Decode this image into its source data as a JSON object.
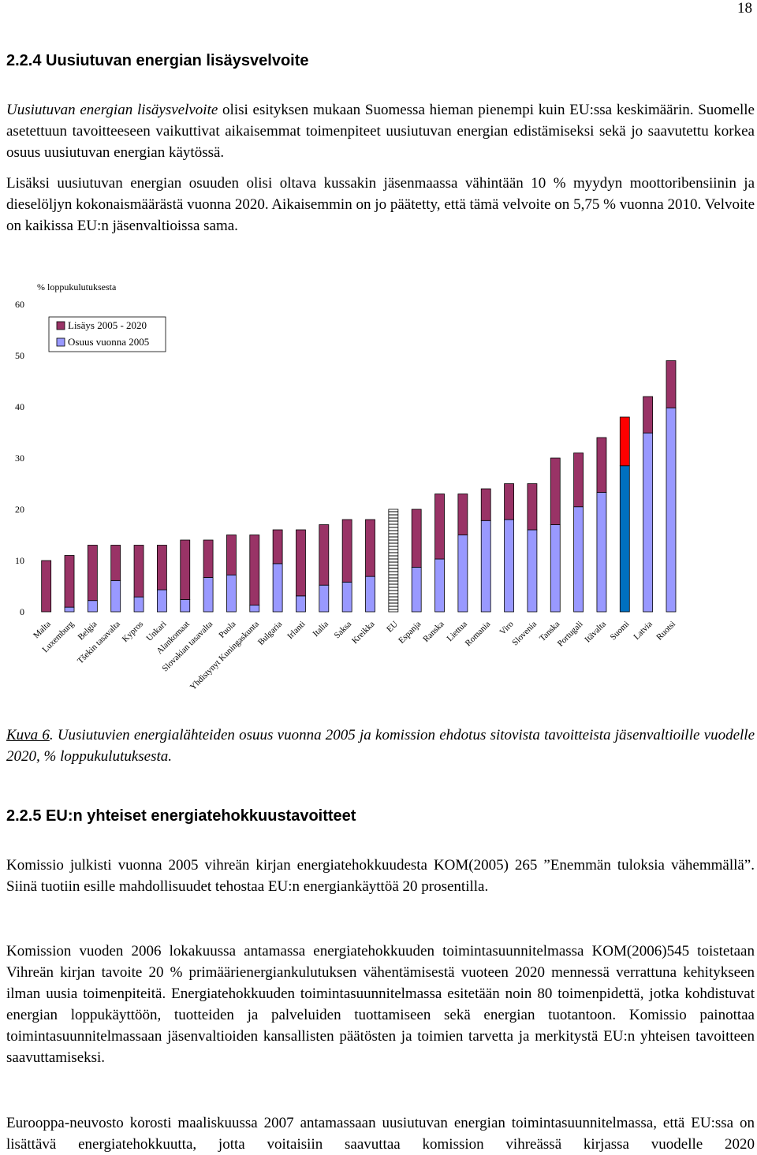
{
  "page_number": "18",
  "section1": {
    "heading": "2.2.4 Uusiutuvan energian lisäysvelvoite",
    "paragraph1_lead": "Uusiutuvan energian lisäysvelvoite",
    "paragraph1_rest": " olisi esityksen mukaan Suomessa hieman pienempi kuin EU:ssa keskimäärin. Suomelle asetettuun tavoitteeseen vaikuttivat aikaisemmat toimenpiteet uusiutuvan energian edistämiseksi sekä jo saavutettu korkea osuus uusiutuvan energian käytössä.",
    "paragraph2": "Lisäksi uusiutuvan energian osuuden olisi oltava kussakin jäsenmaassa vähintään 10 % myydyn moottoribensiinin ja dieselöljyn kokonaismäärästä vuonna 2020. Aikaisemmin on jo päätetty, että tämä velvoite on 5,75 % vuonna 2010. Velvoite on kaikissa EU:n jäsenvaltioissa sama."
  },
  "chart_data": {
    "type": "stacked_bar",
    "y_axis_label": "% loppukulutuksesta",
    "categories": [
      "Malta",
      "Luxemburg",
      "Belgia",
      "Tšekin tasavalta",
      "Kypros",
      "Unkari",
      "Alankomaat",
      "Slovakian tasavalta",
      "Puola",
      "Yhdistynyt Kuningaskunta",
      "Bulgaria",
      "Irlanti",
      "Italia",
      "Saksa",
      "Kreikka",
      "EU",
      "Espanja",
      "Ranska",
      "Liettua",
      "Romania",
      "Viro",
      "Slovenia",
      "Tanska",
      "Portugali",
      "Itävalta",
      "Suomi",
      "Latvia",
      "Ruotsi"
    ],
    "series": [
      {
        "name": "Osuus vuonna 2005",
        "color": "#9999ff",
        "values": [
          0,
          0.9,
          2.2,
          6.1,
          2.9,
          4.3,
          2.4,
          6.7,
          7.2,
          1.3,
          9.4,
          3.1,
          5.2,
          5.8,
          6.9,
          8.5,
          8.7,
          10.3,
          15,
          17.8,
          18,
          16,
          17,
          20.5,
          23.3,
          28.5,
          34.9,
          39.8
        ],
        "colors": [
          "#9999ff",
          "#9999ff",
          "#9999ff",
          "#9999ff",
          "#9999ff",
          "#9999ff",
          "#9999ff",
          "#9999ff",
          "#9999ff",
          "#9999ff",
          "#9999ff",
          "#9999ff",
          "#9999ff",
          "#9999ff",
          "#9999ff",
          "#ffffff",
          "#9999ff",
          "#9999ff",
          "#9999ff",
          "#9999ff",
          "#9999ff",
          "#9999ff",
          "#9999ff",
          "#9999ff",
          "#9999ff",
          "#0070c0",
          "#9999ff",
          "#9999ff"
        ]
      },
      {
        "name": "Lisäys 2005 - 2020",
        "color": "#993366",
        "values": [
          10,
          10.1,
          10.8,
          6.9,
          10.1,
          8.7,
          11.6,
          7.3,
          7.8,
          13.7,
          6.6,
          12.9,
          11.8,
          12.2,
          11.1,
          11.5,
          11.3,
          12.7,
          8,
          6.2,
          7,
          9,
          13,
          10.5,
          10.7,
          9.5,
          7.1,
          9.2
        ],
        "colors": [
          "#993366",
          "#993366",
          "#993366",
          "#993366",
          "#993366",
          "#993366",
          "#993366",
          "#993366",
          "#993366",
          "#993366",
          "#993366",
          "#993366",
          "#993366",
          "#993366",
          "#993366",
          "#ffffff",
          "#993366",
          "#993366",
          "#993366",
          "#993366",
          "#993366",
          "#993366",
          "#993366",
          "#993366",
          "#993366",
          "#ff0000",
          "#993366",
          "#993366"
        ]
      }
    ],
    "hatched_category": "EU",
    "legend_order": [
      1,
      0
    ],
    "ylim": [
      0,
      60
    ],
    "yticks": [
      0,
      10,
      20,
      30,
      40,
      50,
      60
    ]
  },
  "caption": {
    "label": "Kuva 6",
    "text": ". Uusiutuvien energialähteiden osuus vuonna 2005 ja komission ehdotus sitovista tavoitteista jäsenvaltioille vuodelle 2020, % loppukulutuksesta."
  },
  "section2": {
    "heading": "2.2.5 EU:n yhteiset energiatehokkuustavoitteet",
    "paragraph1": "Komissio julkisti vuonna 2005 vihreän kirjan energiatehokkuudesta KOM(2005) 265 ”Enemmän tuloksia vähemmällä”. Siinä tuotiin esille mahdollisuudet tehostaa EU:n energiankäyttöä 20 prosentilla.",
    "paragraph2": "Komission vuoden 2006 lokakuussa antamassa energiatehokkuuden toimintasuunnitelmassa KOM(2006)545 toistetaan Vihreän kirjan tavoite 20 % primäärienergiankulutuksen vähentämisestä vuoteen 2020 mennessä verrattuna kehitykseen ilman uusia toimenpiteitä. Energiatehokkuuden toimintasuunnitelmassa esitetään noin 80 toimenpidettä, jotka kohdistuvat energian loppukäyttöön, tuotteiden ja palveluiden tuottamiseen sekä energian tuotantoon. Komissio painottaa toimintasuunnitelmassaan jäsenvaltioiden kansallisten päätösten ja toimien tarvetta ja merkitystä EU:n yhteisen tavoitteen saavuttamiseksi.",
    "paragraph3": "Eurooppa-neuvosto korosti maaliskuussa 2007 antamassaan uusiutuvan energian toimintasuunnitelmassa, että EU:ssa on lisättävä energiatehokkuutta, jotta voitaisiin saavuttaa komission vihreässä kirjassa vuodelle 2020"
  }
}
